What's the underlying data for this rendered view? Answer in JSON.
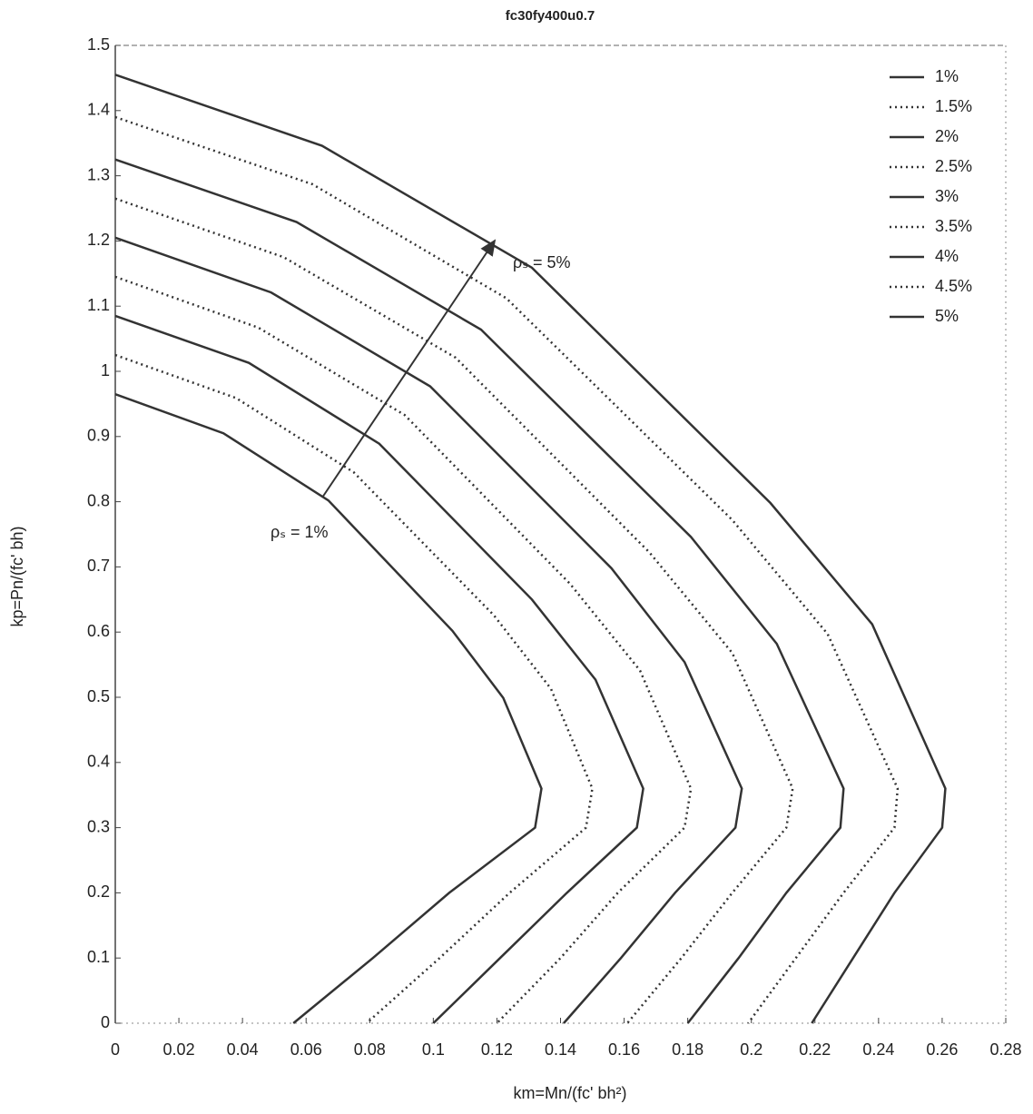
{
  "chart_data": {
    "type": "line",
    "title": "fc30fy400u0.7",
    "x_label": "km=Mn/(fc' bh²)",
    "y_label": "kp=Pn/(fc' bh)",
    "annotations": [
      "ρₛ = 5%",
      "ρₛ = 1%"
    ],
    "xlim": [
      0,
      0.28
    ],
    "xticks": [
      0,
      0.02,
      0.04,
      0.06,
      0.08,
      0.1,
      0.12,
      0.14,
      0.16,
      0.18,
      0.2,
      0.22,
      0.24,
      0.26,
      0.28
    ],
    "ylim": [
      0,
      1.5
    ],
    "yticks": [
      0,
      0.1,
      0.2,
      0.3,
      0.4,
      0.5,
      0.6,
      0.7,
      0.8,
      0.9,
      1,
      1.1,
      1.2,
      1.3,
      1.4,
      1.5
    ],
    "legend": "upper right",
    "series": [
      {
        "name": "1%",
        "color": "#333333",
        "style": "solid",
        "x": [
          0,
          0.034,
          0.067,
          0.106,
          0.122,
          0.134,
          0.132,
          0.105,
          0.081,
          0.056
        ],
        "values": [
          0.965,
          0.905,
          0.802,
          0.602,
          0.499,
          0.36,
          0.3,
          0.2,
          0.1,
          0
        ]
      },
      {
        "name": "1.5%",
        "color": "#333333",
        "style": "dotted",
        "x": [
          0,
          0.038,
          0.075,
          0.119,
          0.137,
          0.15,
          0.148,
          0.124,
          0.102,
          0.079
        ],
        "values": [
          1.025,
          0.959,
          0.845,
          0.626,
          0.513,
          0.36,
          0.3,
          0.2,
          0.1,
          0
        ]
      },
      {
        "name": "2%",
        "color": "#333333",
        "style": "solid",
        "x": [
          0,
          0.042,
          0.083,
          0.131,
          0.151,
          0.166,
          0.164,
          0.142,
          0.121,
          0.1
        ],
        "values": [
          1.085,
          1.013,
          0.889,
          0.65,
          0.527,
          0.36,
          0.3,
          0.2,
          0.1,
          0
        ]
      },
      {
        "name": "2.5%",
        "color": "#333333",
        "style": "dotted",
        "x": [
          0,
          0.045,
          0.091,
          0.143,
          0.165,
          0.181,
          0.179,
          0.158,
          0.14,
          0.12
        ],
        "values": [
          1.145,
          1.067,
          0.933,
          0.674,
          0.541,
          0.36,
          0.3,
          0.2,
          0.1,
          0
        ]
      },
      {
        "name": "3%",
        "color": "#333333",
        "style": "solid",
        "x": [
          0,
          0.049,
          0.099,
          0.156,
          0.179,
          0.197,
          0.195,
          0.176,
          0.159,
          0.141
        ],
        "values": [
          1.205,
          1.121,
          0.977,
          0.698,
          0.554,
          0.36,
          0.3,
          0.2,
          0.1,
          0
        ]
      },
      {
        "name": "3.5%",
        "color": "#333333",
        "style": "dotted",
        "x": [
          0,
          0.053,
          0.107,
          0.168,
          0.194,
          0.213,
          0.211,
          0.194,
          0.178,
          0.161
        ],
        "values": [
          1.265,
          1.175,
          1.021,
          0.722,
          0.568,
          0.36,
          0.3,
          0.2,
          0.1,
          0
        ]
      },
      {
        "name": "4%",
        "color": "#333333",
        "style": "solid",
        "x": [
          0,
          0.057,
          0.115,
          0.181,
          0.208,
          0.229,
          0.228,
          0.211,
          0.196,
          0.18
        ],
        "values": [
          1.325,
          1.229,
          1.064,
          0.746,
          0.582,
          0.36,
          0.3,
          0.2,
          0.1,
          0
        ]
      },
      {
        "name": "4.5%",
        "color": "#333333",
        "style": "dotted",
        "x": [
          0,
          0.062,
          0.123,
          0.194,
          0.224,
          0.246,
          0.245,
          0.229,
          0.214,
          0.199
        ],
        "values": [
          1.39,
          1.287,
          1.112,
          0.772,
          0.597,
          0.36,
          0.3,
          0.2,
          0.1,
          0
        ]
      },
      {
        "name": "5%",
        "color": "#333333",
        "style": "solid",
        "x": [
          0,
          0.065,
          0.131,
          0.206,
          0.238,
          0.261,
          0.26,
          0.245,
          0.232,
          0.219
        ],
        "values": [
          1.455,
          1.346,
          1.159,
          0.798,
          0.612,
          0.36,
          0.3,
          0.2,
          0.1,
          0
        ]
      }
    ]
  }
}
